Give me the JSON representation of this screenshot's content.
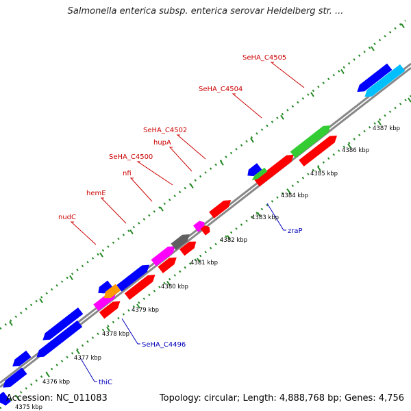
{
  "title": "Salmonella enterica subsp. enterica serovar Heidelberg str. ...",
  "footer": {
    "accession": "Accession: NC_011083",
    "stats": "Topology: circular; Length: 4,888,768 bp; Genes: 4,756"
  },
  "colors": {
    "forward_cds": "#ff0000",
    "reverse_cds": "#0000ff",
    "rna": "#ff00ff",
    "pseudo": "#606060",
    "other": "#33cc33",
    "light_blue": "#00bfff",
    "orange": "#ff9900",
    "backbone": "#808080",
    "ticks": "#228822",
    "forward_label": "#cc0000",
    "reverse_label": "#0000bb"
  },
  "kbp_labels": [
    "4375 kbp",
    "4376 kbp",
    "4377 kbp",
    "4378 kbp",
    "4379 kbp",
    "4380 kbp",
    "4381 kbp",
    "4382 kbp",
    "4383 kbp",
    "4384 kbp",
    "4385 kbp",
    "4386 kbp",
    "4387 kbp"
  ],
  "gene_labels_forward": [
    "nudC",
    "hemE",
    "nfi",
    "SeHA_C4500",
    "hupA",
    "SeHA_C4502",
    "SeHA_C4504",
    "SeHA_C4505"
  ],
  "gene_labels_reverse": [
    "zraP",
    "SeHA_C4496",
    "thiC"
  ]
}
